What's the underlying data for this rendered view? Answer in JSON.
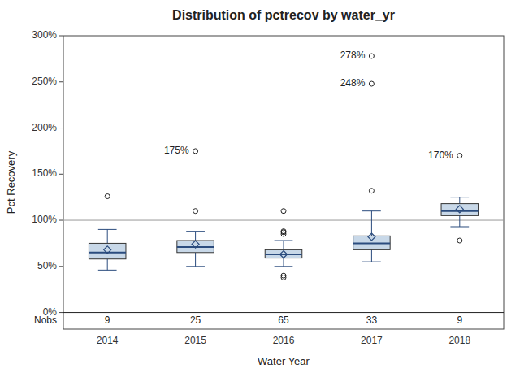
{
  "chart_data": {
    "type": "box",
    "title": "Distribution of pctrecov by water_yr",
    "x_label": "Water Year",
    "y_label": "Pct Recovery",
    "categories": [
      "2014",
      "2015",
      "2016",
      "2017",
      "2018"
    ],
    "boxes": [
      {
        "q1": 58,
        "median": 65,
        "q3": 75,
        "whislo": 46,
        "whishi": 90,
        "mean": 68,
        "fliers": [
          126
        ]
      },
      {
        "q1": 65,
        "median": 71,
        "q3": 78,
        "whislo": 50,
        "whishi": 88,
        "mean": 74,
        "fliers": [
          110,
          175
        ]
      },
      {
        "q1": 59,
        "median": 63,
        "q3": 68,
        "whislo": 50,
        "whishi": 78,
        "mean": 63,
        "fliers": [
          38,
          40,
          85,
          87,
          88,
          110
        ]
      },
      {
        "q1": 68,
        "median": 75,
        "q3": 83,
        "whislo": 55,
        "whishi": 110,
        "mean": 82,
        "fliers": [
          132,
          248,
          278
        ]
      },
      {
        "q1": 105,
        "median": 110,
        "q3": 118,
        "whislo": 93,
        "whishi": 125,
        "mean": 112,
        "fliers": [
          78,
          170
        ]
      }
    ],
    "nobs_label": "Nobs",
    "nobs": [
      9,
      25,
      65,
      33,
      9
    ],
    "annotations": [
      {
        "category": "2015",
        "value": 175,
        "label": "175%"
      },
      {
        "category": "2017",
        "value": 278,
        "label": "278%"
      },
      {
        "category": "2017",
        "value": 248,
        "label": "248%"
      },
      {
        "category": "2018",
        "value": 170,
        "label": "170%"
      }
    ],
    "reference_line": 100,
    "ylim": [
      -18,
      300
    ],
    "yticks": [
      {
        "value": 0,
        "label": "0%"
      },
      {
        "value": 50,
        "label": "50%"
      },
      {
        "value": 100,
        "label": "100%"
      },
      {
        "value": 150,
        "label": "150%"
      },
      {
        "value": 200,
        "label": "200%"
      },
      {
        "value": 250,
        "label": "250%"
      },
      {
        "value": 300,
        "label": "300%"
      }
    ],
    "grid": false,
    "color": "#c8d8e8"
  }
}
